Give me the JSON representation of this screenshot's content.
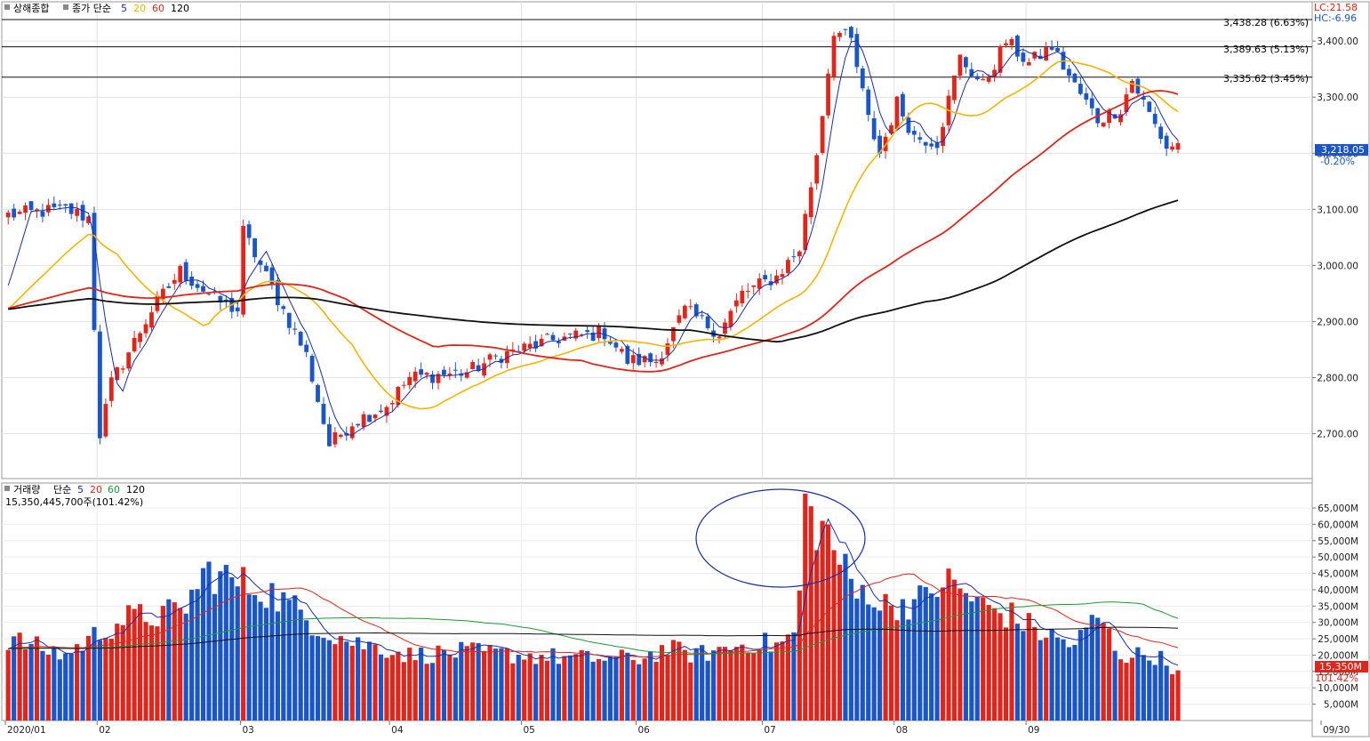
{
  "colors": {
    "up": "#e0261c",
    "down": "#1a56c8",
    "ma5": "#1a2ea8",
    "ma20": "#f5b400",
    "ma60": "#e0261c",
    "ma120": "#111111",
    "vol_ma5": "#1a2ea8",
    "vol_ma20": "#e0261c",
    "vol_ma60": "#1a9a3a",
    "vol_ma120": "#111111",
    "lc": "#e0261c",
    "hc": "#1a56c8",
    "price_badge": "#1a56c8",
    "vol_badge": "#e0261c"
  },
  "price_panel": {
    "legend": {
      "name": "상해종합",
      "type": "종가 단순",
      "p5": "5",
      "p20": "20",
      "p60": "60",
      "p120": "120"
    },
    "lc": "LC:21.58",
    "hc": "HC:-6.96",
    "current_price": "3,218.05",
    "current_change": "-0.20%",
    "hline_labels": [
      "3,438.28 (6.63%)",
      "3,389.63 (5.13%)",
      "3,335.62 (3.45%)"
    ]
  },
  "volume_panel": {
    "legend": {
      "name": "거래량",
      "type": "단순",
      "p5": "5",
      "p20": "20",
      "p60": "60",
      "p120": "120"
    },
    "info": "15,350,445,700주(101.42%)",
    "badge_value": "15,350M",
    "badge_pct": "101.42%"
  },
  "x_labels": [
    "2020/01",
    "02",
    "03",
    "04",
    "05",
    "06",
    "07",
    "08",
    "09",
    "09/30"
  ],
  "chart_data": [
    {
      "type": "candlestick",
      "title": "상해종합",
      "ylim": [
        2620,
        3470
      ],
      "y_ticks": [
        "3,400.00",
        "3,300.00",
        "3,200.00",
        "3,100.00",
        "3,000.00",
        "2,900.00",
        "2,800.00",
        "2,700.00"
      ],
      "y_tick_values": [
        3400,
        3300,
        3200,
        3100,
        3000,
        2900,
        2800,
        2700
      ],
      "horizontal_lines": [
        3438.28,
        3389.63,
        3335.62
      ],
      "segments": [
        {
          "month": "2020/01",
          "n": 16,
          "start": 3090,
          "end": 3080,
          "amp": 20
        },
        {
          "month": "02",
          "n": 25,
          "start": 3060,
          "end": 2980,
          "amp": 30
        },
        {
          "month": "03",
          "n": 26,
          "start": 2990,
          "end": 2760,
          "amp": 50
        },
        {
          "month": "04",
          "n": 23,
          "start": 2750,
          "end": 2860,
          "amp": 25
        },
        {
          "month": "05",
          "n": 20,
          "start": 2860,
          "end": 2850,
          "amp": 20
        },
        {
          "month": "06",
          "n": 22,
          "start": 2830,
          "end": 2980,
          "amp": 20
        },
        {
          "month": "07",
          "n": 23,
          "start": 3000,
          "end": 3300,
          "amp": 60
        },
        {
          "month": "08",
          "n": 23,
          "start": 3300,
          "end": 3380,
          "amp": 35
        },
        {
          "month": "09",
          "n": 22,
          "start": 3380,
          "end": 3218,
          "amp": 35
        }
      ],
      "close_anchors": [
        [
          0,
          3090
        ],
        [
          10,
          3100
        ],
        [
          14,
          3085
        ],
        [
          16,
          2700
        ],
        [
          18,
          2790
        ],
        [
          25,
          2920
        ],
        [
          30,
          2990
        ],
        [
          36,
          2940
        ],
        [
          40,
          2920
        ],
        [
          41,
          3060
        ],
        [
          46,
          2960
        ],
        [
          52,
          2840
        ],
        [
          56,
          2680
        ],
        [
          60,
          2720
        ],
        [
          66,
          2750
        ],
        [
          70,
          2800
        ],
        [
          80,
          2810
        ],
        [
          86,
          2840
        ],
        [
          96,
          2870
        ],
        [
          104,
          2880
        ],
        [
          108,
          2830
        ],
        [
          113,
          2830
        ],
        [
          118,
          2920
        ],
        [
          124,
          2880
        ],
        [
          128,
          2950
        ],
        [
          134,
          2980
        ],
        [
          138,
          3030
        ],
        [
          141,
          3200
        ],
        [
          144,
          3420
        ],
        [
          147,
          3400
        ],
        [
          150,
          3260
        ],
        [
          152,
          3200
        ],
        [
          155,
          3290
        ],
        [
          158,
          3230
        ],
        [
          162,
          3220
        ],
        [
          166,
          3370
        ],
        [
          170,
          3320
        ],
        [
          174,
          3400
        ],
        [
          178,
          3360
        ],
        [
          182,
          3390
        ],
        [
          186,
          3320
        ],
        [
          190,
          3260
        ],
        [
          194,
          3280
        ],
        [
          196,
          3330
        ],
        [
          200,
          3250
        ],
        [
          202,
          3210
        ],
        [
          204,
          3218
        ]
      ],
      "annotations": {
        "last_close": 3218.05,
        "last_change_pct": -0.2
      }
    },
    {
      "type": "bar",
      "title": "거래량",
      "unit": "M",
      "ylim": [
        0,
        68000
      ],
      "y_ticks": [
        "65,000M",
        "60,000M",
        "55,000M",
        "50,000M",
        "45,000M",
        "40,000M",
        "35,000M",
        "30,000M",
        "25,000M",
        "20,000M",
        "15,000M",
        "10,000M",
        "5,000M"
      ],
      "y_tick_values": [
        65000,
        60000,
        55000,
        50000,
        45000,
        40000,
        35000,
        30000,
        25000,
        20000,
        15000,
        10000,
        5000
      ],
      "volume_anchors": [
        [
          0,
          25000
        ],
        [
          10,
          20000
        ],
        [
          16,
          27000
        ],
        [
          20,
          31000
        ],
        [
          30,
          33000
        ],
        [
          35,
          46000
        ],
        [
          40,
          42000
        ],
        [
          45,
          40000
        ],
        [
          50,
          34000
        ],
        [
          55,
          28000
        ],
        [
          60,
          24000
        ],
        [
          66,
          22000
        ],
        [
          70,
          20000
        ],
        [
          80,
          21000
        ],
        [
          90,
          20000
        ],
        [
          100,
          19000
        ],
        [
          110,
          19000
        ],
        [
          115,
          22000
        ],
        [
          120,
          20000
        ],
        [
          130,
          24000
        ],
        [
          134,
          23000
        ],
        [
          137,
          26000
        ],
        [
          138,
          40000
        ],
        [
          139,
          65000
        ],
        [
          141,
          60000
        ],
        [
          143,
          57000
        ],
        [
          145,
          49000
        ],
        [
          148,
          38000
        ],
        [
          150,
          41000
        ],
        [
          152,
          35000
        ],
        [
          160,
          37000
        ],
        [
          163,
          43000
        ],
        [
          166,
          40000
        ],
        [
          170,
          35000
        ],
        [
          175,
          32000
        ],
        [
          180,
          27000
        ],
        [
          186,
          23000
        ],
        [
          190,
          32000
        ],
        [
          194,
          20000
        ],
        [
          200,
          20000
        ],
        [
          204,
          15350
        ]
      ],
      "annotations": {
        "last_volume": 15350445700,
        "last_volume_pct": 101.42
      }
    }
  ]
}
